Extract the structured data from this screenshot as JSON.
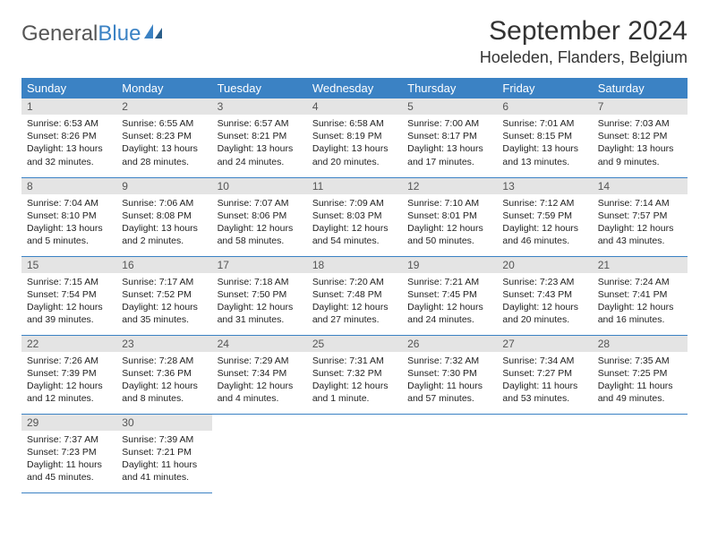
{
  "logo": {
    "text1": "General",
    "text2": "Blue"
  },
  "title": "September 2024",
  "location": "Hoeleden, Flanders, Belgium",
  "colors": {
    "header_bg": "#3b82c4",
    "header_text": "#ffffff",
    "daynum_bg": "#e4e4e4",
    "daynum_text": "#555555",
    "cell_border": "#3b82c4",
    "body_text": "#222222",
    "title_text": "#333333"
  },
  "weekdays": [
    "Sunday",
    "Monday",
    "Tuesday",
    "Wednesday",
    "Thursday",
    "Friday",
    "Saturday"
  ],
  "weeks": [
    [
      {
        "n": "1",
        "sr": "Sunrise: 6:53 AM",
        "ss": "Sunset: 8:26 PM",
        "dl": "Daylight: 13 hours and 32 minutes."
      },
      {
        "n": "2",
        "sr": "Sunrise: 6:55 AM",
        "ss": "Sunset: 8:23 PM",
        "dl": "Daylight: 13 hours and 28 minutes."
      },
      {
        "n": "3",
        "sr": "Sunrise: 6:57 AM",
        "ss": "Sunset: 8:21 PM",
        "dl": "Daylight: 13 hours and 24 minutes."
      },
      {
        "n": "4",
        "sr": "Sunrise: 6:58 AM",
        "ss": "Sunset: 8:19 PM",
        "dl": "Daylight: 13 hours and 20 minutes."
      },
      {
        "n": "5",
        "sr": "Sunrise: 7:00 AM",
        "ss": "Sunset: 8:17 PM",
        "dl": "Daylight: 13 hours and 17 minutes."
      },
      {
        "n": "6",
        "sr": "Sunrise: 7:01 AM",
        "ss": "Sunset: 8:15 PM",
        "dl": "Daylight: 13 hours and 13 minutes."
      },
      {
        "n": "7",
        "sr": "Sunrise: 7:03 AM",
        "ss": "Sunset: 8:12 PM",
        "dl": "Daylight: 13 hours and 9 minutes."
      }
    ],
    [
      {
        "n": "8",
        "sr": "Sunrise: 7:04 AM",
        "ss": "Sunset: 8:10 PM",
        "dl": "Daylight: 13 hours and 5 minutes."
      },
      {
        "n": "9",
        "sr": "Sunrise: 7:06 AM",
        "ss": "Sunset: 8:08 PM",
        "dl": "Daylight: 13 hours and 2 minutes."
      },
      {
        "n": "10",
        "sr": "Sunrise: 7:07 AM",
        "ss": "Sunset: 8:06 PM",
        "dl": "Daylight: 12 hours and 58 minutes."
      },
      {
        "n": "11",
        "sr": "Sunrise: 7:09 AM",
        "ss": "Sunset: 8:03 PM",
        "dl": "Daylight: 12 hours and 54 minutes."
      },
      {
        "n": "12",
        "sr": "Sunrise: 7:10 AM",
        "ss": "Sunset: 8:01 PM",
        "dl": "Daylight: 12 hours and 50 minutes."
      },
      {
        "n": "13",
        "sr": "Sunrise: 7:12 AM",
        "ss": "Sunset: 7:59 PM",
        "dl": "Daylight: 12 hours and 46 minutes."
      },
      {
        "n": "14",
        "sr": "Sunrise: 7:14 AM",
        "ss": "Sunset: 7:57 PM",
        "dl": "Daylight: 12 hours and 43 minutes."
      }
    ],
    [
      {
        "n": "15",
        "sr": "Sunrise: 7:15 AM",
        "ss": "Sunset: 7:54 PM",
        "dl": "Daylight: 12 hours and 39 minutes."
      },
      {
        "n": "16",
        "sr": "Sunrise: 7:17 AM",
        "ss": "Sunset: 7:52 PM",
        "dl": "Daylight: 12 hours and 35 minutes."
      },
      {
        "n": "17",
        "sr": "Sunrise: 7:18 AM",
        "ss": "Sunset: 7:50 PM",
        "dl": "Daylight: 12 hours and 31 minutes."
      },
      {
        "n": "18",
        "sr": "Sunrise: 7:20 AM",
        "ss": "Sunset: 7:48 PM",
        "dl": "Daylight: 12 hours and 27 minutes."
      },
      {
        "n": "19",
        "sr": "Sunrise: 7:21 AM",
        "ss": "Sunset: 7:45 PM",
        "dl": "Daylight: 12 hours and 24 minutes."
      },
      {
        "n": "20",
        "sr": "Sunrise: 7:23 AM",
        "ss": "Sunset: 7:43 PM",
        "dl": "Daylight: 12 hours and 20 minutes."
      },
      {
        "n": "21",
        "sr": "Sunrise: 7:24 AM",
        "ss": "Sunset: 7:41 PM",
        "dl": "Daylight: 12 hours and 16 minutes."
      }
    ],
    [
      {
        "n": "22",
        "sr": "Sunrise: 7:26 AM",
        "ss": "Sunset: 7:39 PM",
        "dl": "Daylight: 12 hours and 12 minutes."
      },
      {
        "n": "23",
        "sr": "Sunrise: 7:28 AM",
        "ss": "Sunset: 7:36 PM",
        "dl": "Daylight: 12 hours and 8 minutes."
      },
      {
        "n": "24",
        "sr": "Sunrise: 7:29 AM",
        "ss": "Sunset: 7:34 PM",
        "dl": "Daylight: 12 hours and 4 minutes."
      },
      {
        "n": "25",
        "sr": "Sunrise: 7:31 AM",
        "ss": "Sunset: 7:32 PM",
        "dl": "Daylight: 12 hours and 1 minute."
      },
      {
        "n": "26",
        "sr": "Sunrise: 7:32 AM",
        "ss": "Sunset: 7:30 PM",
        "dl": "Daylight: 11 hours and 57 minutes."
      },
      {
        "n": "27",
        "sr": "Sunrise: 7:34 AM",
        "ss": "Sunset: 7:27 PM",
        "dl": "Daylight: 11 hours and 53 minutes."
      },
      {
        "n": "28",
        "sr": "Sunrise: 7:35 AM",
        "ss": "Sunset: 7:25 PM",
        "dl": "Daylight: 11 hours and 49 minutes."
      }
    ],
    [
      {
        "n": "29",
        "sr": "Sunrise: 7:37 AM",
        "ss": "Sunset: 7:23 PM",
        "dl": "Daylight: 11 hours and 45 minutes."
      },
      {
        "n": "30",
        "sr": "Sunrise: 7:39 AM",
        "ss": "Sunset: 7:21 PM",
        "dl": "Daylight: 11 hours and 41 minutes."
      },
      null,
      null,
      null,
      null,
      null
    ]
  ]
}
